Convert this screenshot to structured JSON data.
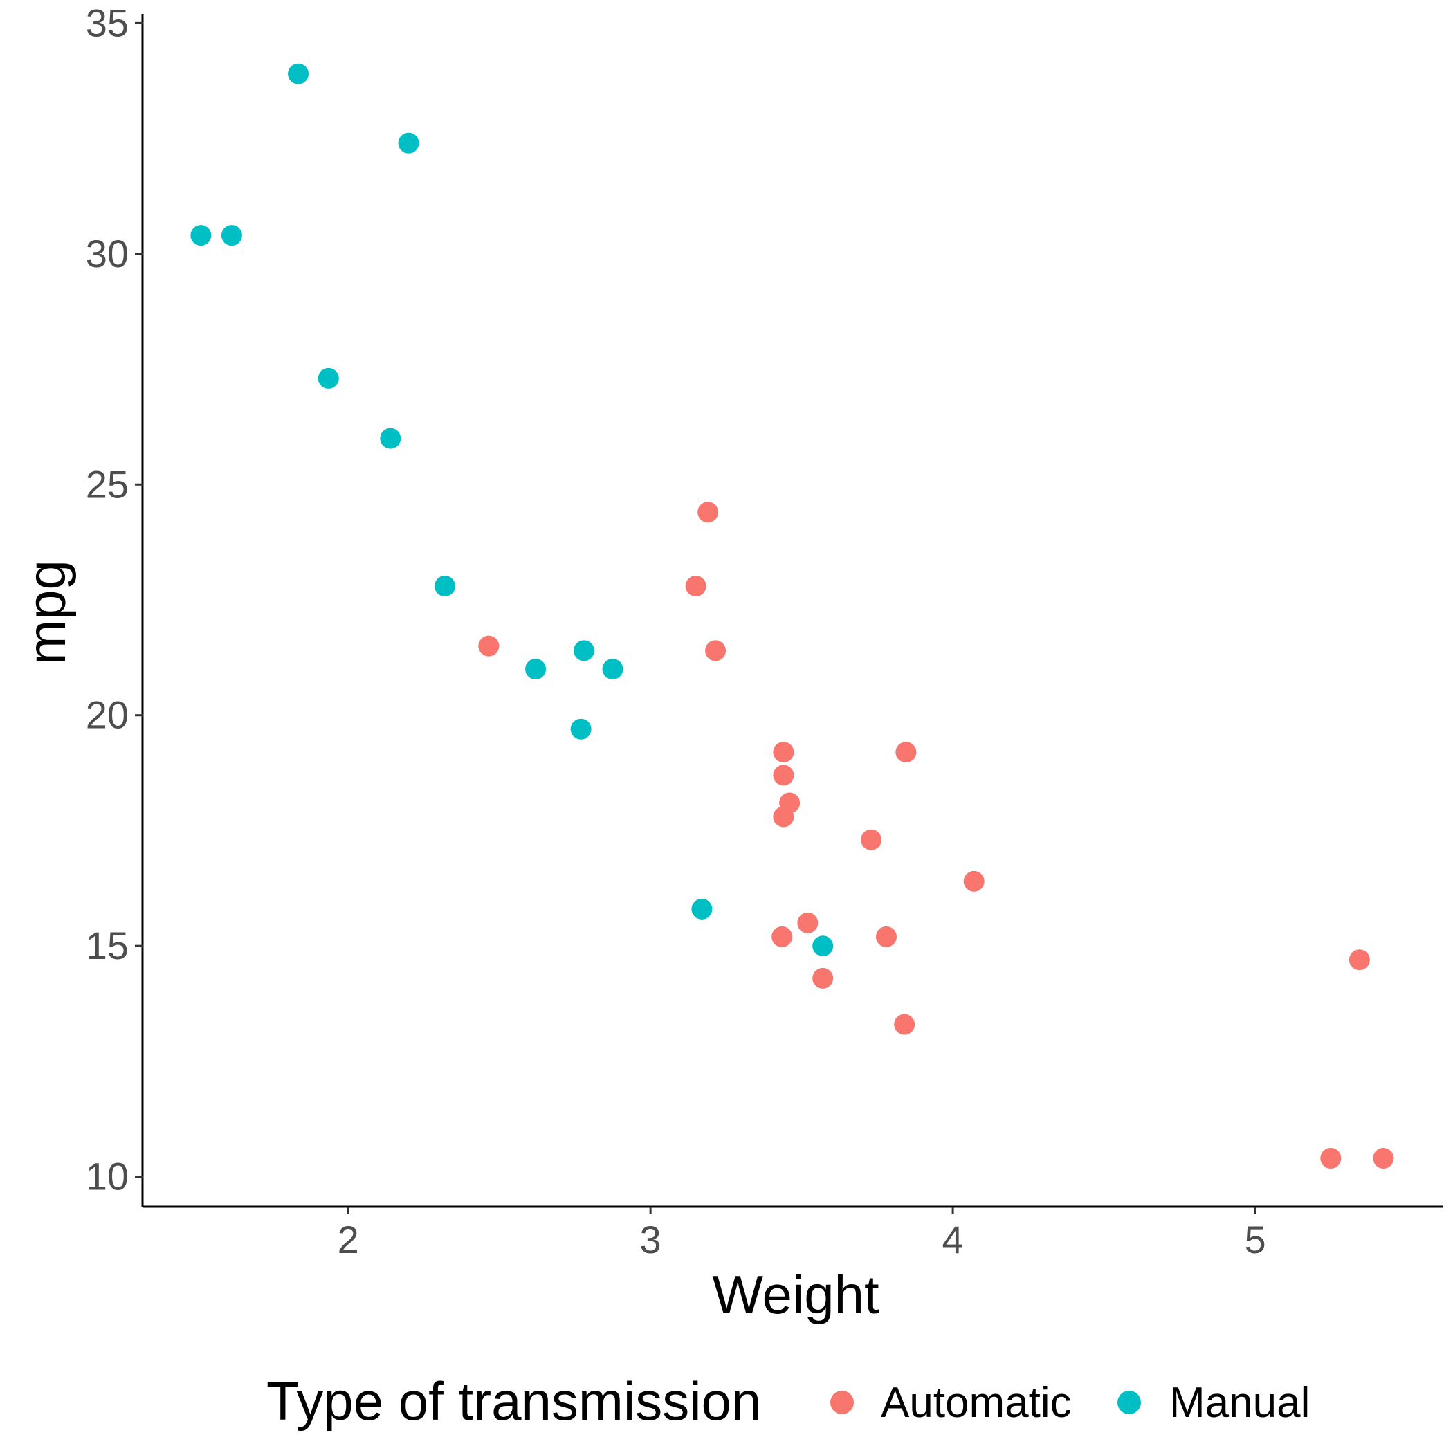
{
  "chart_data": {
    "type": "scatter",
    "xlabel": "Weight",
    "ylabel": "mpg",
    "xlim": [
      1.32,
      5.62
    ],
    "ylim": [
      9.35,
      35.2
    ],
    "x_ticks": [
      2,
      3,
      4,
      5
    ],
    "y_ticks": [
      10,
      15,
      20,
      25,
      30,
      35
    ],
    "grid": false,
    "legend": {
      "title": "Type of transmission",
      "position": "bottom",
      "entries": [
        {
          "label": "Automatic",
          "color": "#F8766D"
        },
        {
          "label": "Manual",
          "color": "#00BFC4"
        }
      ]
    },
    "series": [
      {
        "name": "Automatic",
        "color": "#F8766D",
        "points": [
          {
            "x": 3.215,
            "y": 21.4
          },
          {
            "x": 3.44,
            "y": 18.7
          },
          {
            "x": 3.46,
            "y": 18.1
          },
          {
            "x": 3.57,
            "y": 14.3
          },
          {
            "x": 3.19,
            "y": 24.4
          },
          {
            "x": 3.15,
            "y": 22.8
          },
          {
            "x": 3.44,
            "y": 19.2
          },
          {
            "x": 3.44,
            "y": 17.8
          },
          {
            "x": 4.07,
            "y": 16.4
          },
          {
            "x": 3.73,
            "y": 17.3
          },
          {
            "x": 3.78,
            "y": 15.2
          },
          {
            "x": 5.25,
            "y": 10.4
          },
          {
            "x": 5.424,
            "y": 10.4
          },
          {
            "x": 5.345,
            "y": 14.7
          },
          {
            "x": 2.465,
            "y": 21.5
          },
          {
            "x": 3.52,
            "y": 15.5
          },
          {
            "x": 3.435,
            "y": 15.2
          },
          {
            "x": 3.84,
            "y": 13.3
          },
          {
            "x": 3.845,
            "y": 19.2
          }
        ]
      },
      {
        "name": "Manual",
        "color": "#00BFC4",
        "points": [
          {
            "x": 2.62,
            "y": 21.0
          },
          {
            "x": 2.875,
            "y": 21.0
          },
          {
            "x": 2.32,
            "y": 22.8
          },
          {
            "x": 2.2,
            "y": 32.4
          },
          {
            "x": 1.615,
            "y": 30.4
          },
          {
            "x": 1.835,
            "y": 33.9
          },
          {
            "x": 1.935,
            "y": 27.3
          },
          {
            "x": 2.14,
            "y": 26.0
          },
          {
            "x": 1.513,
            "y": 30.4
          },
          {
            "x": 3.17,
            "y": 15.8
          },
          {
            "x": 2.77,
            "y": 19.7
          },
          {
            "x": 3.57,
            "y": 15.0
          },
          {
            "x": 2.78,
            "y": 21.4
          }
        ]
      }
    ]
  }
}
